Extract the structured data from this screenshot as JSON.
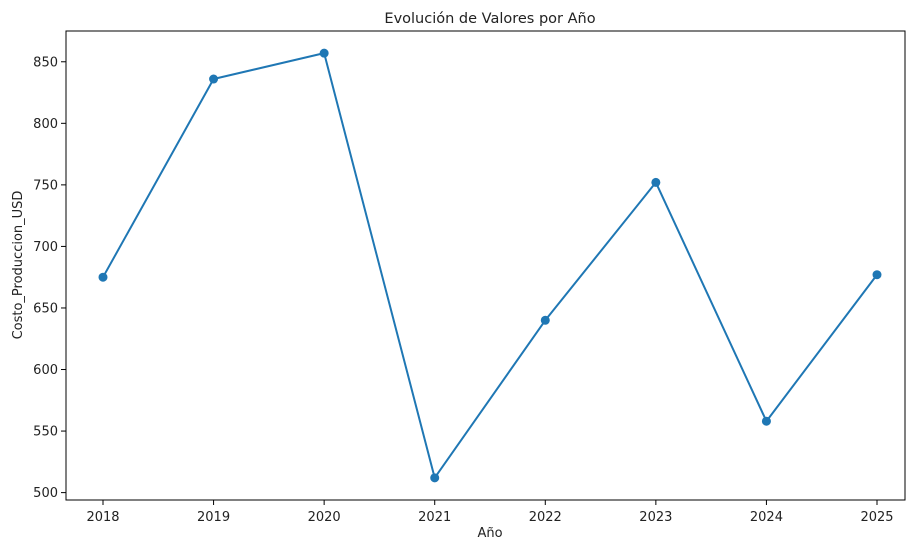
{
  "chart_data": {
    "type": "line",
    "title": "Evolución de Valores por Año",
    "xlabel": "Año",
    "ylabel": "Costo_Produccion_USD",
    "x": [
      "2018",
      "2019",
      "2020",
      "2021",
      "2022",
      "2023",
      "2024",
      "2025"
    ],
    "series": [
      {
        "values": [
          675,
          836,
          857,
          512,
          640,
          752,
          558,
          677
        ],
        "color": "#1f77b4"
      }
    ],
    "ylim": [
      494,
      875
    ],
    "yticks": [
      500,
      550,
      600,
      650,
      700,
      750,
      800,
      850
    ],
    "grid": false,
    "legend": "none"
  }
}
